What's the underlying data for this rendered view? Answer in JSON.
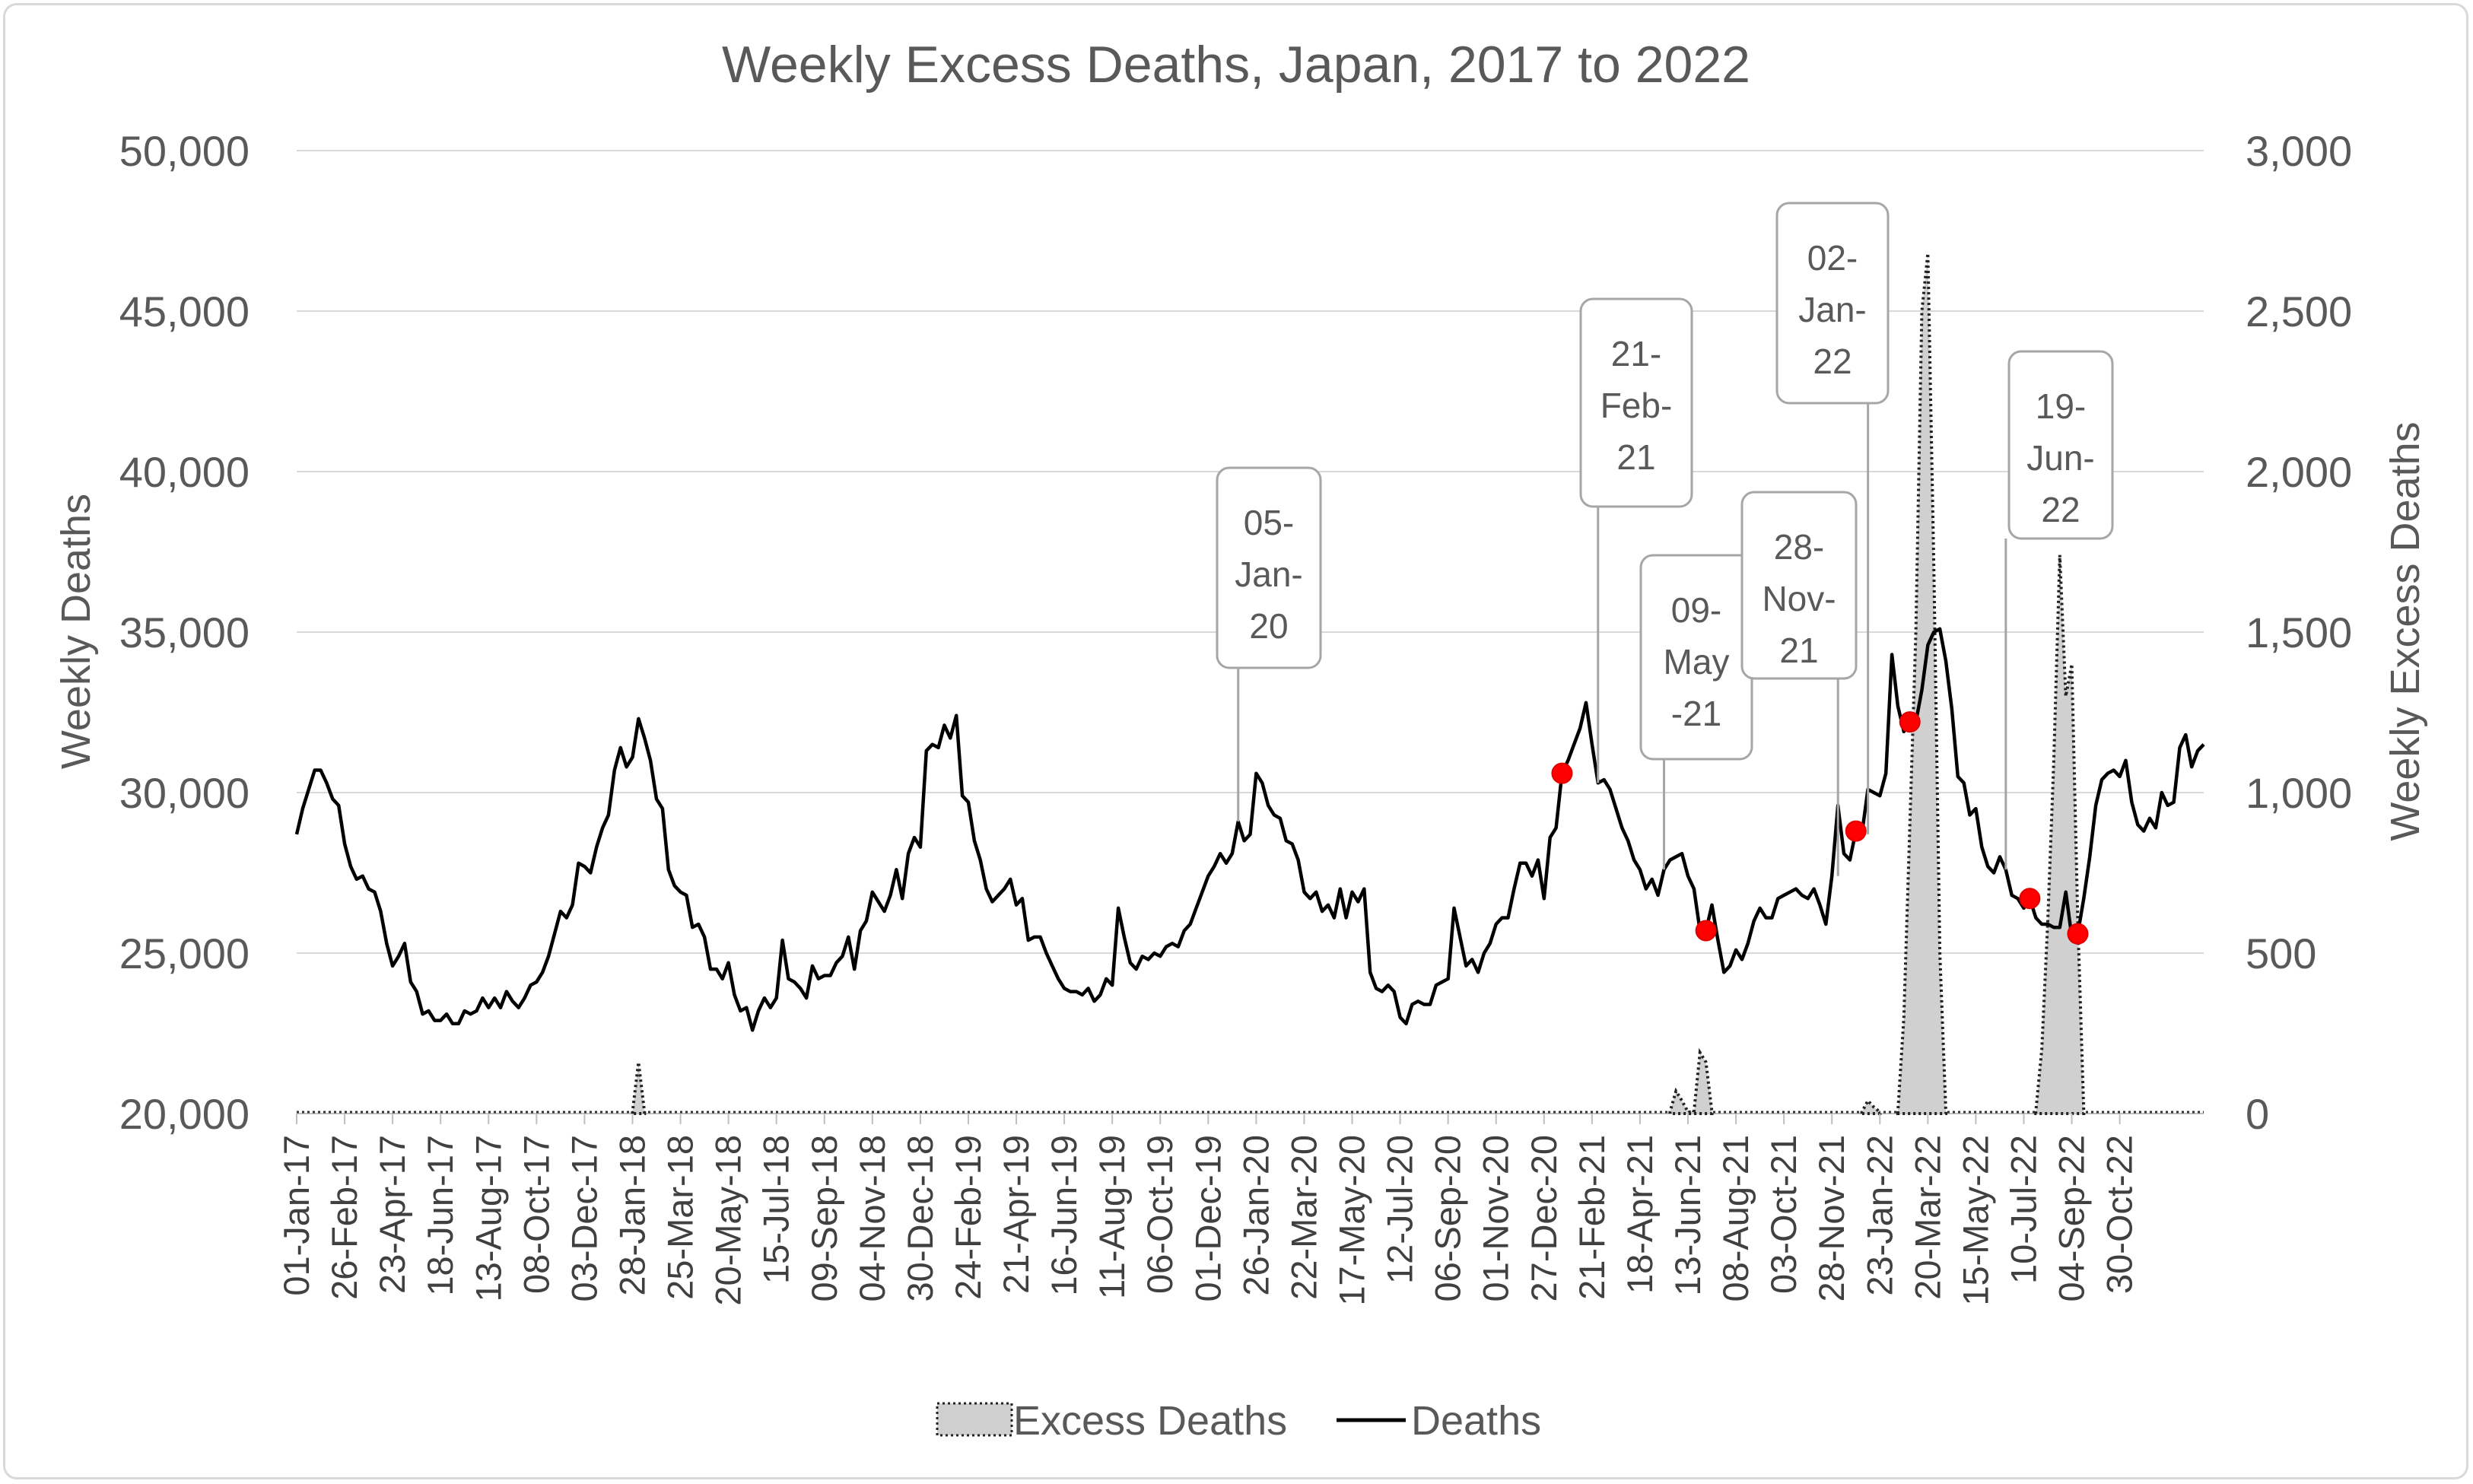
{
  "chart_data": {
    "type": "line+area",
    "title": "Weekly Excess Deaths, Japan, 2017 to 2022",
    "ylabel_left": "Weekly Deaths",
    "ylabel_right": "Weekly Excess Deaths",
    "ylim_left": [
      20000,
      50000
    ],
    "ylim_right": [
      0,
      3000
    ],
    "yticks_left": [
      "20,000",
      "25,000",
      "30,000",
      "35,000",
      "40,000",
      "45,000",
      "50,000"
    ],
    "yticks_right": [
      "0",
      "500",
      "1,000",
      "1,500",
      "2,000",
      "2,500",
      "3,000"
    ],
    "x_tick_labels": [
      "01-Jan-17",
      "26-Feb-17",
      "23-Apr-17",
      "18-Jun-17",
      "13-Aug-17",
      "08-Oct-17",
      "03-Dec-17",
      "28-Jan-18",
      "25-Mar-18",
      "20-May-18",
      "15-Jul-18",
      "09-Sep-18",
      "04-Nov-18",
      "30-Dec-18",
      "24-Feb-19",
      "21-Apr-19",
      "16-Jun-19",
      "11-Aug-19",
      "06-Oct-19",
      "01-Dec-19",
      "26-Jan-20",
      "22-Mar-20",
      "17-May-20",
      "12-Jul-20",
      "06-Sep-20",
      "01-Nov-20",
      "27-Dec-20",
      "21-Feb-21",
      "18-Apr-21",
      "13-Jun-21",
      "08-Aug-21",
      "03-Oct-21",
      "28-Nov-21",
      "23-Jan-22",
      "20-Mar-22",
      "15-May-22",
      "10-Jul-22",
      "04-Sep-22",
      "30-Oct-22"
    ],
    "series": [
      {
        "name": "Deaths",
        "axis": "left",
        "style": "line",
        "values": [
          28700,
          29500,
          30100,
          30700,
          30700,
          30300,
          29800,
          29600,
          28400,
          27700,
          27300,
          27400,
          27000,
          26900,
          26300,
          25300,
          24600,
          24900,
          25300,
          24100,
          23800,
          23100,
          23200,
          22900,
          22900,
          23100,
          22800,
          22800,
          23200,
          23100,
          23200,
          23600,
          23300,
          23600,
          23300,
          23800,
          23500,
          23300,
          23600,
          24000,
          24100,
          24400,
          24900,
          25600,
          26300,
          26100,
          26500,
          27800,
          27700,
          27500,
          28300,
          28900,
          29300,
          30700,
          31400,
          30800,
          31100,
          32300,
          31700,
          31000,
          29800,
          29500,
          27600,
          27100,
          26900,
          26800,
          25800,
          25900,
          25500,
          24500,
          24500,
          24200,
          24700,
          23700,
          23200,
          23300,
          22600,
          23200,
          23600,
          23300,
          23600,
          25400,
          24200,
          24100,
          23900,
          23600,
          24600,
          24200,
          24300,
          24300,
          24700,
          24900,
          25500,
          24500,
          25700,
          26000,
          26900,
          26600,
          26300,
          26800,
          27600,
          26700,
          28100,
          28600,
          28300,
          31300,
          31500,
          31400,
          32100,
          31700,
          32400,
          29900,
          29700,
          28500,
          27900,
          27000,
          26600,
          26800,
          27000,
          27300,
          26500,
          26700,
          25400,
          25500,
          25500,
          25000,
          24600,
          24200,
          23900,
          23800,
          23800,
          23700,
          23900,
          23500,
          23700,
          24200,
          24000,
          26400,
          25500,
          24700,
          24500,
          24900,
          24800,
          25000,
          24900,
          25200,
          25300,
          25200,
          25700,
          25900,
          26400,
          26900,
          27400,
          27700,
          28100,
          27800,
          28100,
          29100,
          28500,
          28700,
          30600,
          30300,
          29600,
          29300,
          29200,
          28500,
          28400,
          27900,
          26900,
          26700,
          26900,
          26300,
          26500,
          26100,
          27000,
          26100,
          26900,
          26600,
          27000,
          24400,
          23900,
          23800,
          24000,
          23800,
          23000,
          22800,
          23400,
          23500,
          23400,
          23400,
          24000,
          24100,
          24200,
          26400,
          25500,
          24600,
          24800,
          24400,
          25000,
          25300,
          25900,
          26100,
          26100,
          27000,
          27800,
          27800,
          27400,
          27900,
          26700,
          28600,
          28900,
          30600,
          31000,
          31500,
          32000,
          32800,
          31500,
          30300,
          30400,
          30100,
          29500,
          28900,
          28500,
          27900,
          27600,
          27000,
          27300,
          26800,
          27600,
          27900,
          28000,
          28100,
          27400,
          27000,
          25700,
          25700,
          26500,
          25400,
          24400,
          24600,
          25100,
          24800,
          25300,
          26000,
          26400,
          26100,
          26100,
          26700,
          26800,
          26900,
          27000,
          26800,
          26700,
          27000,
          26500,
          25900,
          27400,
          29600,
          28100,
          27900,
          28800,
          28700,
          30100,
          30000,
          29900,
          30600,
          34300,
          32700,
          31900,
          32200,
          32200,
          33200,
          34600,
          35000,
          35100,
          34100,
          32600,
          30500,
          30300,
          29300,
          29500,
          28300,
          27700,
          27500,
          28000,
          27600,
          26800,
          26700,
          26400,
          26700,
          26100,
          25900,
          25900,
          25800,
          25800,
          26900,
          25500,
          25600,
          26700,
          28000,
          29600,
          30400,
          30600,
          30700,
          30500,
          31000,
          29700,
          29000,
          28800,
          29200,
          28900,
          30000,
          29600,
          29700,
          31400,
          31800,
          30800,
          31300,
          31500
        ]
      },
      {
        "name": "Excess Deaths",
        "axis": "right",
        "style": "area-dotted",
        "points": [
          {
            "week": 56,
            "value": 5
          },
          {
            "week": 57,
            "value": 160
          },
          {
            "week": 58,
            "value": 5
          },
          {
            "week": 229,
            "value": 5
          },
          {
            "week": 230,
            "value": 70
          },
          {
            "week": 231,
            "value": 40
          },
          {
            "week": 232,
            "value": 5
          },
          {
            "week": 233,
            "value": 5
          },
          {
            "week": 234,
            "value": 190
          },
          {
            "week": 235,
            "value": 160
          },
          {
            "week": 236,
            "value": 5
          },
          {
            "week": 261,
            "value": 5
          },
          {
            "week": 262,
            "value": 40
          },
          {
            "week": 263,
            "value": 20
          },
          {
            "week": 264,
            "value": 5
          },
          {
            "week": 267,
            "value": 5
          },
          {
            "week": 268,
            "value": 300
          },
          {
            "week": 269,
            "value": 900
          },
          {
            "week": 270,
            "value": 1500
          },
          {
            "week": 271,
            "value": 2500
          },
          {
            "week": 272,
            "value": 2680
          },
          {
            "week": 273,
            "value": 1700
          },
          {
            "week": 274,
            "value": 500
          },
          {
            "week": 275,
            "value": 5
          },
          {
            "week": 290,
            "value": 5
          },
          {
            "week": 291,
            "value": 200
          },
          {
            "week": 292,
            "value": 600
          },
          {
            "week": 293,
            "value": 1100
          },
          {
            "week": 294,
            "value": 1740
          },
          {
            "week": 295,
            "value": 1300
          },
          {
            "week": 296,
            "value": 1400
          },
          {
            "week": 297,
            "value": 600
          },
          {
            "week": 298,
            "value": 5
          }
        ]
      }
    ],
    "highlighted_points": [
      {
        "week": 211,
        "label": "27-Dec-20"
      },
      {
        "week": 235,
        "label": "13-Jun-21"
      },
      {
        "week": 260,
        "label": "28-Nov-21"
      },
      {
        "week": 269,
        "label": "20-Mar-22"
      },
      {
        "week": 289,
        "label": "10-Jul-22"
      },
      {
        "week": 297,
        "label": "04-Sep-22"
      }
    ],
    "annotations": [
      {
        "id": "jan20",
        "lines": [
          "05-",
          "Jan-",
          "20"
        ],
        "week": 157
      },
      {
        "id": "feb21",
        "lines": [
          "21-",
          "Feb-",
          "21"
        ],
        "week": 217
      },
      {
        "id": "may21",
        "lines": [
          "09-",
          "May",
          "-21"
        ],
        "week": 228
      },
      {
        "id": "nov21",
        "lines": [
          "28-",
          "Nov-",
          "21"
        ],
        "week": 256
      },
      {
        "id": "jan22",
        "lines": [
          "02-",
          "Jan-",
          "22"
        ],
        "week": 261
      },
      {
        "id": "jun22",
        "lines": [
          "19-",
          "Jun-",
          "22"
        ],
        "week": 285
      }
    ],
    "legend": {
      "position": "bottom",
      "entries": [
        "Excess Deaths",
        "Deaths"
      ]
    },
    "grid": true
  }
}
